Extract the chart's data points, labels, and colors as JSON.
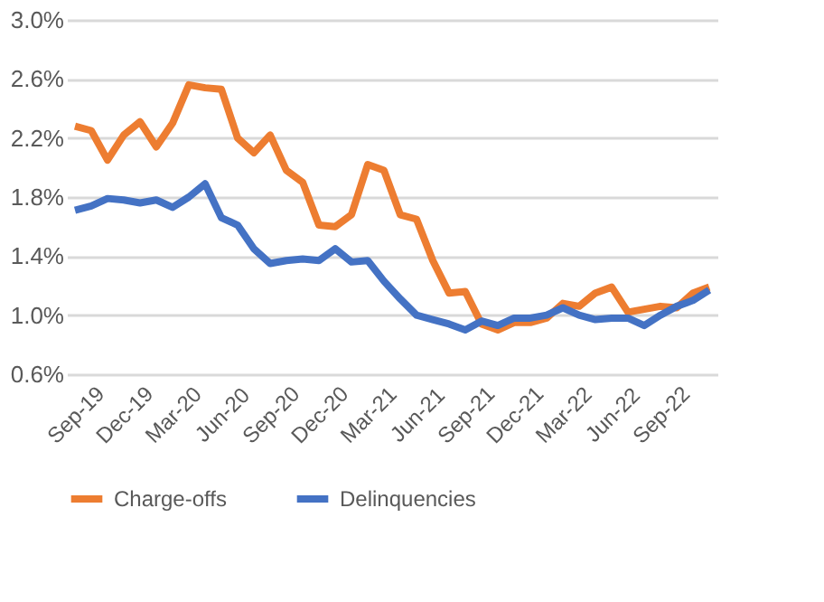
{
  "chart_data": {
    "type": "line",
    "categories": [
      "Sep-19",
      null,
      null,
      "Dec-19",
      null,
      null,
      "Mar-20",
      null,
      null,
      "Jun-20",
      null,
      null,
      "Sep-20",
      null,
      null,
      "Dec-20",
      null,
      null,
      "Mar-21",
      null,
      null,
      "Jun-21",
      null,
      null,
      "Sep-21",
      null,
      null,
      "Dec-21",
      null,
      null,
      "Mar-22",
      null,
      null,
      "Jun-22",
      null,
      null,
      "Sep-22",
      null,
      null,
      null
    ],
    "series": [
      {
        "name": "Charge-offs",
        "color": "#ed7d31",
        "values": [
          2.28,
          2.25,
          2.05,
          2.22,
          2.31,
          2.14,
          2.3,
          2.56,
          2.54,
          2.53,
          2.2,
          2.1,
          2.22,
          1.98,
          1.9,
          1.61,
          1.6,
          1.68,
          2.02,
          1.98,
          1.68,
          1.65,
          1.37,
          1.15,
          1.16,
          0.94,
          0.9,
          0.95,
          0.95,
          0.98,
          1.08,
          1.06,
          1.15,
          1.19,
          1.02,
          1.04,
          1.06,
          1.05,
          1.15,
          1.19
        ]
      },
      {
        "name": "Delinquencies",
        "color": "#4472c4",
        "values": [
          1.71,
          1.74,
          1.79,
          1.78,
          1.76,
          1.78,
          1.73,
          1.8,
          1.89,
          1.66,
          1.61,
          1.45,
          1.35,
          1.37,
          1.38,
          1.37,
          1.45,
          1.36,
          1.37,
          1.23,
          1.11,
          1.0,
          0.97,
          0.94,
          0.9,
          0.96,
          0.93,
          0.98,
          0.98,
          1.0,
          1.05,
          1.0,
          0.97,
          0.98,
          0.98,
          0.93,
          1.0,
          1.06,
          1.1,
          1.17
        ]
      }
    ],
    "ylim": [
      0.6,
      3.0
    ],
    "yticks": [
      {
        "value": 0.6,
        "label": "0.6%"
      },
      {
        "value": 1.0,
        "label": "1.0%"
      },
      {
        "value": 1.4,
        "label": "1.4%"
      },
      {
        "value": 1.8,
        "label": "1.8%"
      },
      {
        "value": 2.2,
        "label": "2.2%"
      },
      {
        "value": 2.6,
        "label": "2.6%"
      },
      {
        "value": 3.0,
        "label": "3.0%"
      }
    ],
    "grid": "y",
    "legend": "bottom",
    "line_style": "solid",
    "marker": "none"
  }
}
